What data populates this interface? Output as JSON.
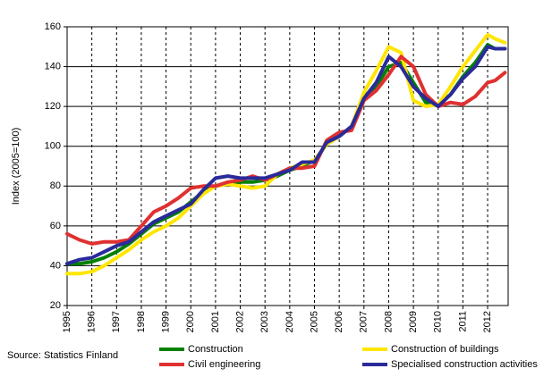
{
  "chart_data": {
    "type": "line",
    "y_label": "Index (2005=100)",
    "source": "Source: Statistics Finland",
    "x": [
      1995,
      1995.5,
      1996,
      1996.5,
      1997,
      1997.5,
      1998,
      1998.5,
      1999,
      1999.5,
      2000,
      2000.5,
      2001,
      2001.5,
      2002,
      2002.5,
      2003,
      2003.5,
      2004,
      2004.5,
      2005,
      2005.5,
      2006,
      2006.5,
      2007,
      2007.5,
      2008,
      2008.5,
      2009,
      2009.5,
      2010,
      2010.5,
      2011,
      2011.5,
      2012,
      2012.3,
      2012.7
    ],
    "xlim": [
      1995,
      2012.83
    ],
    "xticks": [
      1995,
      1996,
      1997,
      1998,
      1999,
      2000,
      2001,
      2002,
      2003,
      2004,
      2005,
      2006,
      2007,
      2008,
      2009,
      2010,
      2011,
      2012
    ],
    "ylim": [
      20,
      160
    ],
    "yticks": [
      20,
      40,
      60,
      80,
      100,
      120,
      140,
      160
    ],
    "grid": true,
    "series": [
      {
        "name": "Construction",
        "color": "#008000",
        "values": [
          41,
          41,
          42,
          44,
          47,
          51,
          56,
          61,
          64,
          67,
          72,
          77,
          80,
          81,
          82,
          82,
          83,
          85,
          88,
          90,
          93,
          101,
          105,
          110,
          125,
          130,
          140,
          142,
          132,
          122,
          121,
          126,
          135,
          142,
          151,
          149,
          149
        ]
      },
      {
        "name": "Construction of buildings",
        "color": "#ffe600",
        "values": [
          36,
          36,
          37,
          40,
          44,
          48,
          53,
          57,
          60,
          64,
          70,
          76,
          80,
          81,
          80,
          79,
          80,
          86,
          89,
          91,
          93,
          101,
          105,
          110,
          127,
          138,
          150,
          147,
          123,
          120,
          121,
          130,
          140,
          148,
          156,
          154,
          152
        ]
      },
      {
        "name": "Civil engineering",
        "color": "#e03030",
        "values": [
          56,
          53,
          51,
          52,
          52,
          53,
          60,
          67,
          70,
          74,
          79,
          80,
          80,
          82,
          83,
          85,
          83,
          86,
          89,
          89,
          90,
          103,
          107,
          108,
          123,
          128,
          136,
          145,
          140,
          126,
          120,
          122,
          121,
          125,
          132,
          133,
          137
        ]
      },
      {
        "name": "Specialised construction activities",
        "color": "#2a2a9a",
        "values": [
          41,
          43,
          44,
          47,
          50,
          52,
          57,
          62,
          65,
          68,
          71,
          78,
          84,
          85,
          84,
          84,
          84,
          86,
          88,
          92,
          92,
          102,
          105,
          110,
          124,
          132,
          145,
          140,
          130,
          124,
          120,
          126,
          134,
          140,
          150,
          149,
          149
        ]
      }
    ]
  }
}
